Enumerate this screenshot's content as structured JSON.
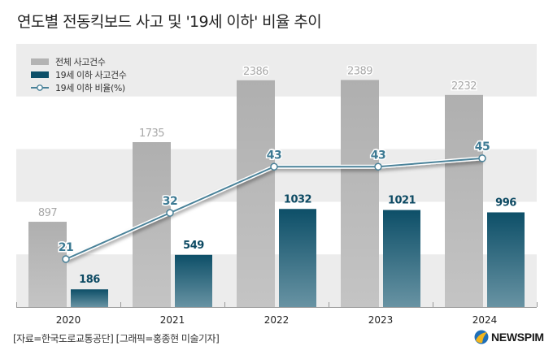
{
  "title": "연도별 전동킥보드 사고 및 '19세 이하' 비율 추이",
  "source": "[자료=한국도로교통공단] [그래픽=홍종현 미술기자]",
  "logo": {
    "text": "NEWSPIM",
    "icon": "newspim-logo-icon"
  },
  "colors": {
    "total_bar": "#b3b3b3",
    "youth_bar_top": "#0d4f68",
    "youth_bar_bottom": "#6893a3",
    "line": "#4a8299",
    "band": "#ececec",
    "total_label": "#a8a8a8",
    "youth_label": "#0d4a63",
    "rate_label": "#3d7a93"
  },
  "chart_data": {
    "type": "bar",
    "title": "연도별 전동킥보드 사고 및 '19세 이하' 비율 추이",
    "xlabel": "",
    "ylabel": "",
    "categories": [
      "2020",
      "2021",
      "2022",
      "2023",
      "2024"
    ],
    "series": [
      {
        "name": "전체 사고건수",
        "type": "bar",
        "values": [
          897,
          1735,
          2386,
          2389,
          2232
        ]
      },
      {
        "name": "19세 이하 사고건수",
        "type": "bar",
        "values": [
          186,
          549,
          1032,
          1021,
          996
        ]
      },
      {
        "name": "19세 이하 비율(%)",
        "type": "line",
        "values": [
          21,
          32,
          43,
          43,
          45
        ]
      }
    ],
    "ylim": [
      0,
      2800
    ],
    "y2lim": [
      -40.7,
      51
    ],
    "legend_position": "top-left",
    "grid": false
  }
}
